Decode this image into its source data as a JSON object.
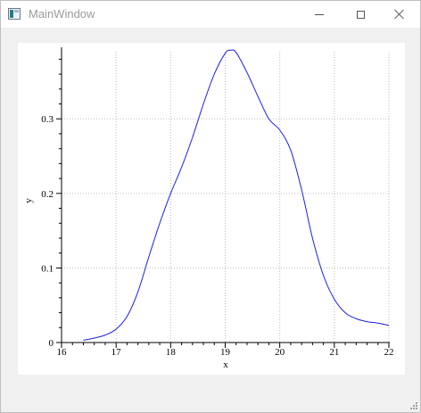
{
  "window": {
    "title": "MainWindow",
    "icon": "qt-app-window-icon",
    "controls": {
      "minimize": "minimize-icon",
      "maximize": "maximize-icon",
      "close": "close-icon"
    }
  },
  "chart_data": {
    "type": "line",
    "title": "",
    "xlabel": "x",
    "ylabel": "y",
    "xlim": [
      16,
      22
    ],
    "ylim": [
      0,
      0.39
    ],
    "xticks": [
      "16",
      "17",
      "18",
      "19",
      "20",
      "21",
      "22"
    ],
    "yticks": [
      "0",
      "0.1",
      "0.2",
      "0.3"
    ],
    "grid": true,
    "legend": "none",
    "color": "#1f1fe0",
    "series": [
      {
        "x": [
          16.4,
          16.6,
          16.8,
          17.0,
          17.2,
          17.4,
          17.6,
          17.8,
          18.0,
          18.2,
          18.4,
          18.6,
          18.8,
          19.0,
          19.1,
          19.2,
          19.4,
          19.6,
          19.8,
          20.0,
          20.2,
          20.4,
          20.6,
          20.8,
          21.0,
          21.2,
          21.4,
          21.6,
          21.8,
          22.0
        ],
        "y": [
          0.003,
          0.006,
          0.01,
          0.018,
          0.035,
          0.068,
          0.115,
          0.16,
          0.2,
          0.235,
          0.275,
          0.32,
          0.36,
          0.388,
          0.392,
          0.389,
          0.362,
          0.33,
          0.3,
          0.285,
          0.258,
          0.205,
          0.14,
          0.09,
          0.058,
          0.04,
          0.032,
          0.028,
          0.026,
          0.023
        ]
      }
    ]
  }
}
